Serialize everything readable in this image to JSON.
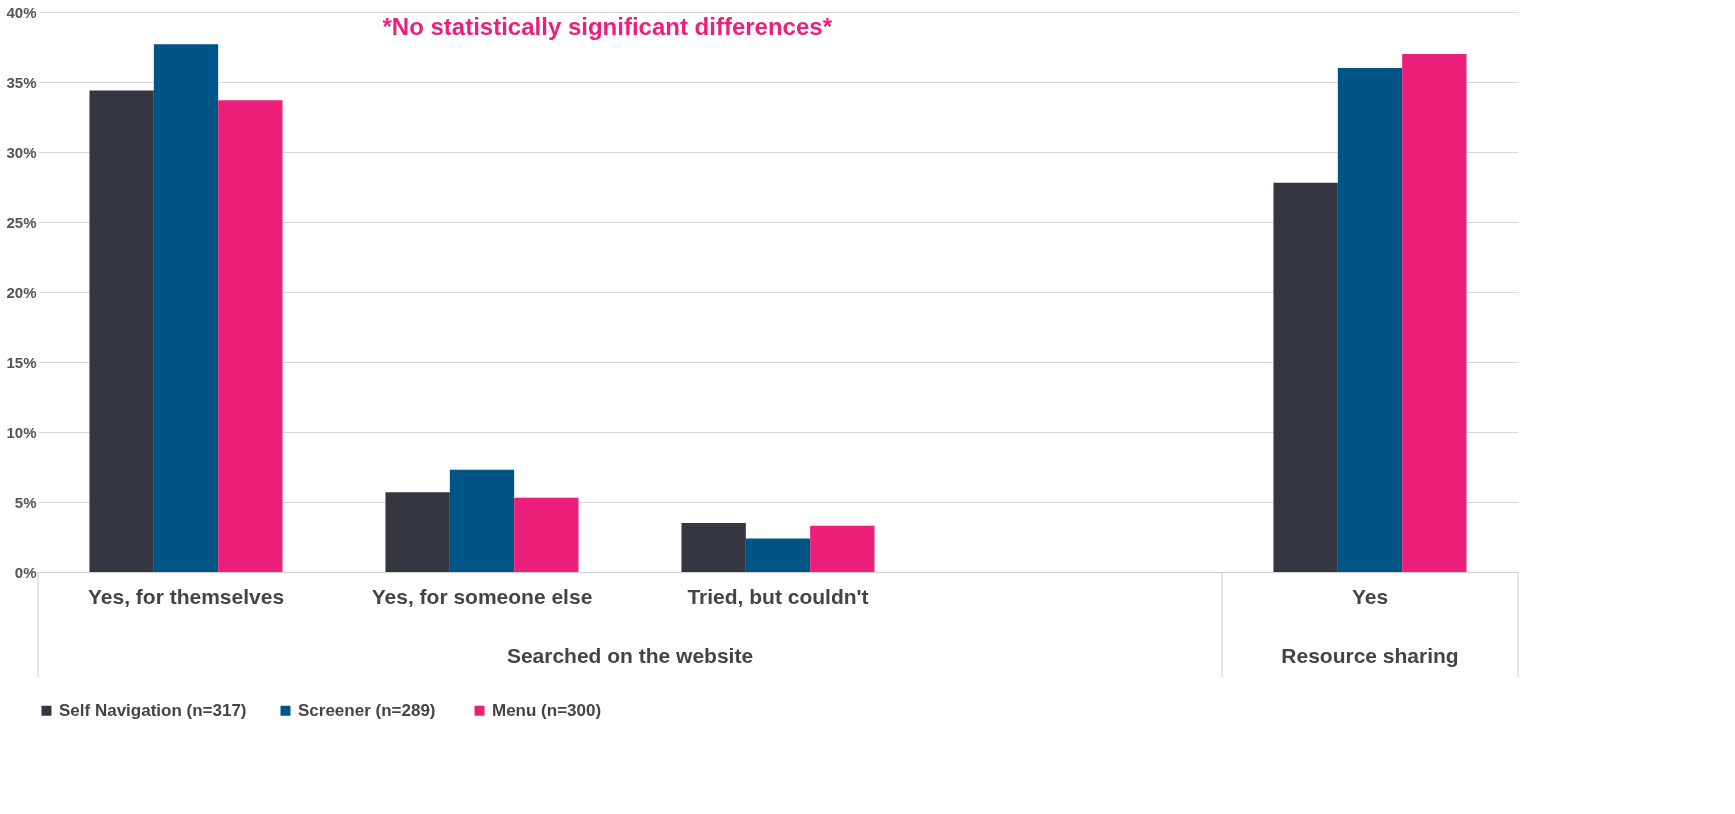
{
  "chart_data": {
    "type": "bar",
    "categories": [
      "Yes, for themselves",
      "Yes, for someone else",
      "Tried, but couldn't",
      null,
      "Yes"
    ],
    "series": [
      {
        "name": "Self Navigation (n=317)",
        "color": "#343740",
        "values": [
          34.4,
          5.7,
          3.5,
          null,
          27.8
        ]
      },
      {
        "name": "Screener  (n=289)",
        "color": "#005587",
        "values": [
          37.7,
          7.3,
          2.4,
          null,
          36.0
        ]
      },
      {
        "name": "Menu  (n=300)",
        "color": "#ec1f7b",
        "values": [
          33.7,
          5.3,
          3.3,
          null,
          37.0
        ]
      }
    ],
    "ylim": [
      0,
      40
    ],
    "yticks": [
      {
        "value": 0,
        "label": "0%"
      },
      {
        "value": 5,
        "label": "5%"
      },
      {
        "value": 10,
        "label": "10%"
      },
      {
        "value": 15,
        "label": "15%"
      },
      {
        "value": 20,
        "label": "20%"
      },
      {
        "value": 25,
        "label": "25%"
      },
      {
        "value": 30,
        "label": "30%"
      },
      {
        "value": 35,
        "label": "35%"
      },
      {
        "value": 40,
        "label": "40%"
      }
    ],
    "annotations": [
      "*No statistically significant differences*",
      "Searched on the website",
      "Resource sharing"
    ],
    "grid": "y",
    "legend": "bottom"
  }
}
